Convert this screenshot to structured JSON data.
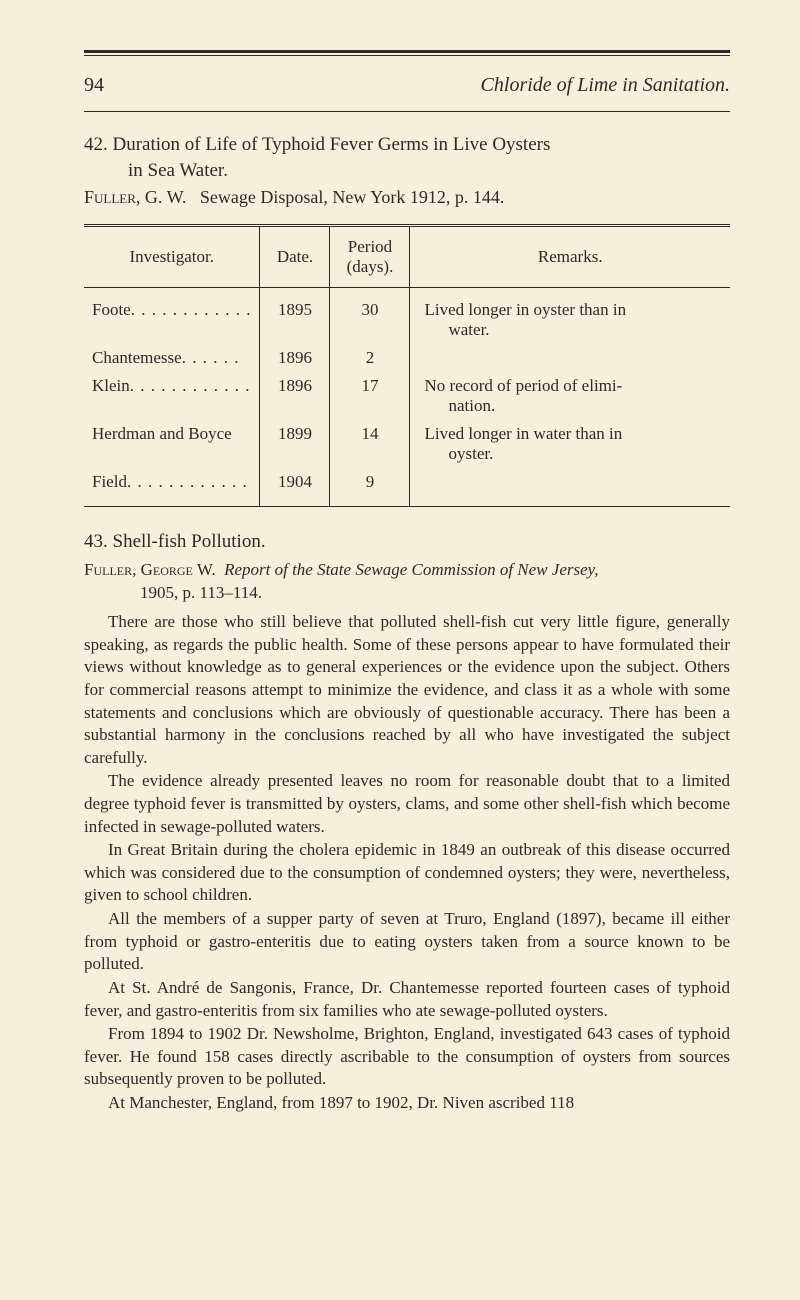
{
  "header": {
    "page_number": "94",
    "running_title": "Chloride of Lime in Sanitation."
  },
  "section42": {
    "title_line1": "42. Duration of Life of Typhoid Fever Germs in Live Oysters",
    "title_line2": "in Sea Water.",
    "author": "Fuller, G. W.",
    "citation": "Sewage Disposal, New York 1912, p. 144."
  },
  "table": {
    "headers": {
      "investigator": "Investigator.",
      "date": "Date.",
      "period": "Period (days).",
      "remarks": "Remarks."
    },
    "rows": [
      {
        "investigator": "Foote",
        "dots": ". . . . . . . . . . . .",
        "date": "1895",
        "period": "30",
        "remarks_a": "Lived longer in oyster than in",
        "remarks_b": "water."
      },
      {
        "investigator": "Chantemesse",
        "dots": ". . . . . .",
        "date": "1896",
        "period": "2",
        "remarks_a": "",
        "remarks_b": ""
      },
      {
        "investigator": "Klein",
        "dots": ". . . . . . . . . . . .",
        "date": "1896",
        "period": "17",
        "remarks_a": "No record of period of elimi-",
        "remarks_b": "nation."
      },
      {
        "investigator": "Herdman and Boyce",
        "dots": "",
        "date": "1899",
        "period": "14",
        "remarks_a": "Lived longer in water than in",
        "remarks_b": "oyster."
      },
      {
        "investigator": "Field",
        "dots": ". . . . . . . . . . . .",
        "date": "1904",
        "period": "9",
        "remarks_a": "",
        "remarks_b": ""
      }
    ]
  },
  "section43": {
    "title": "43. Shell-fish Pollution.",
    "author": "Fuller, George W.",
    "citation_a": "Report of the State Sewage Commission of New Jersey,",
    "citation_b": "1905, p. 113–114.",
    "paragraphs": [
      "There are those who still believe that polluted shell-fish cut very little figure, generally speaking, as regards the public health. Some of these persons appear to have formulated their views without knowledge as to general experiences or the evidence upon the subject. Others for commercial reasons attempt to minimize the evidence, and class it as a whole with some statements and conclusions which are obviously of questionable accuracy. There has been a substantial harmony in the conclusions reached by all who have investigated the subject carefully.",
      "The evidence already presented leaves no room for reasonable doubt that to a limited degree typhoid fever is transmitted by oysters, clams, and some other shell-fish which become infected in sewage-polluted waters.",
      "In Great Britain during the cholera epidemic in 1849 an outbreak of this disease occurred which was considered due to the consumption of condemned oysters; they were, nevertheless, given to school children.",
      "All the members of a supper party of seven at Truro, England (1897), became ill either from typhoid or gastro-enteritis due to eating oysters taken from a source known to be polluted.",
      "At St. André de Sangonis, France, Dr. Chantemesse reported fourteen cases of typhoid fever, and gastro-enteritis from six families who ate sewage-polluted oysters.",
      "From 1894 to 1902 Dr. Newsholme, Brighton, England, investigated 643 cases of typhoid fever. He found 158 cases directly ascribable to the consumption of oysters from sources subsequently proven to be polluted.",
      "At Manchester, England, from 1897 to 1902, Dr. Niven ascribed 118"
    ]
  }
}
